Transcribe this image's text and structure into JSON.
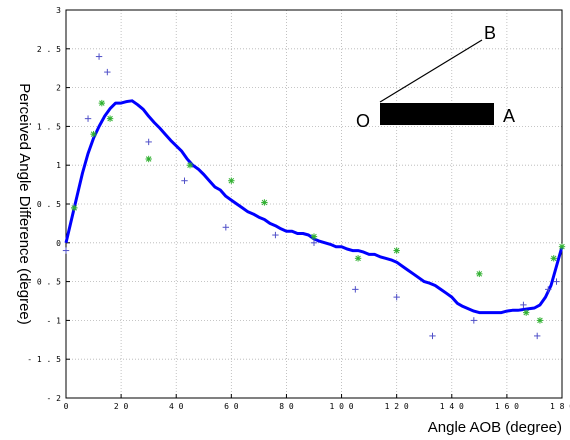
{
  "chart_data": {
    "type": "line",
    "title": "",
    "xlabel": "Angle AOB (degree)",
    "ylabel": "Perceived Angle Difference (degree)",
    "xlim": [
      0,
      180
    ],
    "ylim": [
      -2,
      3
    ],
    "x_ticks": [
      0,
      20,
      40,
      60,
      80,
      100,
      120,
      140,
      160,
      180
    ],
    "x_tick_labels": [
      "0",
      "2 0",
      "4 0",
      "6 0",
      "8 0",
      "1 0 0",
      "1 2 0",
      "1 4 0",
      "1 6 0",
      "1 8 0"
    ],
    "y_ticks": [
      -2,
      -1.5,
      -1,
      -0.5,
      0,
      0.5,
      1,
      1.5,
      2,
      2.5,
      3
    ],
    "y_tick_labels": [
      "- 2",
      "- 1 . 5",
      "- 1",
      "- 0 . 5",
      "0",
      "0 . 5",
      "1",
      "1 . 5",
      "2",
      "2 . 5",
      "3"
    ],
    "grid": true,
    "series": [
      {
        "kind": "line",
        "color": "#0000ff",
        "x": [
          0,
          2,
          4,
          6,
          8,
          10,
          12,
          14,
          16,
          18,
          20,
          22,
          24,
          26,
          28,
          30,
          32,
          34,
          36,
          38,
          40,
          42,
          44,
          46,
          48,
          50,
          52,
          54,
          56,
          58,
          60,
          62,
          64,
          66,
          68,
          70,
          72,
          74,
          76,
          78,
          80,
          82,
          84,
          86,
          88,
          90,
          92,
          94,
          96,
          98,
          100,
          102,
          104,
          106,
          108,
          110,
          112,
          114,
          116,
          118,
          120,
          122,
          124,
          126,
          128,
          130,
          132,
          134,
          136,
          138,
          140,
          142,
          144,
          146,
          148,
          150,
          152,
          154,
          156,
          158,
          160,
          162,
          164,
          166,
          168,
          170,
          172,
          174,
          176,
          178,
          180
        ],
        "y": [
          0,
          0.3,
          0.6,
          0.9,
          1.15,
          1.35,
          1.5,
          1.63,
          1.73,
          1.8,
          1.8,
          1.82,
          1.83,
          1.78,
          1.72,
          1.63,
          1.55,
          1.48,
          1.4,
          1.32,
          1.25,
          1.18,
          1.08,
          1.0,
          0.95,
          0.88,
          0.8,
          0.72,
          0.68,
          0.6,
          0.55,
          0.5,
          0.45,
          0.4,
          0.37,
          0.33,
          0.3,
          0.25,
          0.22,
          0.18,
          0.15,
          0.15,
          0.12,
          0.12,
          0.1,
          0.05,
          0.02,
          0.0,
          -0.02,
          -0.05,
          -0.05,
          -0.08,
          -0.1,
          -0.1,
          -0.12,
          -0.15,
          -0.15,
          -0.18,
          -0.2,
          -0.22,
          -0.25,
          -0.3,
          -0.35,
          -0.4,
          -0.45,
          -0.5,
          -0.52,
          -0.55,
          -0.6,
          -0.65,
          -0.7,
          -0.78,
          -0.82,
          -0.85,
          -0.88,
          -0.9,
          -0.9,
          -0.9,
          -0.9,
          -0.9,
          -0.88,
          -0.87,
          -0.87,
          -0.86,
          -0.85,
          -0.84,
          -0.8,
          -0.7,
          -0.55,
          -0.3,
          -0.05
        ]
      },
      {
        "kind": "scatter",
        "marker": "+",
        "color": "#5050c8",
        "x": [
          0,
          3,
          8,
          12,
          15,
          30,
          43,
          58,
          76,
          90,
          105,
          120,
          133,
          148,
          166,
          171,
          175,
          178
        ],
        "y": [
          -0.1,
          0.45,
          1.6,
          2.4,
          2.2,
          1.3,
          0.8,
          0.2,
          0.1,
          0.0,
          -0.6,
          -0.7,
          -1.2,
          -1.0,
          -0.8,
          -1.2,
          -0.6,
          -0.5
        ]
      },
      {
        "kind": "scatter",
        "marker": "*",
        "color": "#30b030",
        "x": [
          3,
          10,
          13,
          16,
          30,
          45,
          60,
          72,
          90,
          106,
          120,
          150,
          167,
          172,
          177,
          180
        ],
        "y": [
          0.45,
          1.4,
          1.8,
          1.6,
          1.08,
          1.0,
          0.8,
          0.52,
          0.08,
          -0.2,
          -0.1,
          -0.4,
          -0.9,
          -1.0,
          -0.2,
          -0.05
        ]
      }
    ],
    "annotation": {
      "labels": [
        "O",
        "A",
        "B"
      ],
      "bar_color": "#000000"
    }
  }
}
